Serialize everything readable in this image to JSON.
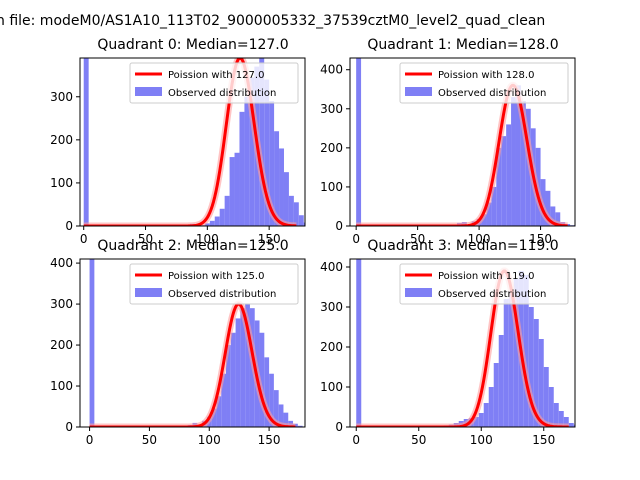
{
  "figure": {
    "suptitle": "n file: modeM0/AS1A10_113T02_9000005332_37539cztM0_level2_quad_clean"
  },
  "colors": {
    "hist": "#7f7ff5",
    "poisson": "#ff0000",
    "peak_fill": "#ff9d9d"
  },
  "chart_data": [
    {
      "type": "bar",
      "title": "Quadrant 0: Median=127.0",
      "median": 127.0,
      "xlim": [
        -3,
        179
      ],
      "ylim": [
        0,
        390
      ],
      "xticks": [
        0,
        50,
        100,
        150
      ],
      "yticks": [
        0,
        100,
        200,
        300
      ],
      "legend": [
        "Poission with 127.0",
        "Observed distribution"
      ],
      "legend_position": "top-right",
      "zero_bin_value": 390,
      "hist": {
        "bin_start": 70,
        "bin_width": 4,
        "values": [
          1,
          2,
          1,
          3,
          5,
          4,
          2,
          6,
          12,
          22,
          40,
          70,
          160,
          170,
          265,
          300,
          345,
          370,
          390,
          340,
          290,
          220,
          180,
          125,
          70,
          55,
          25,
          8,
          5,
          2,
          1
        ]
      },
      "poisson": {
        "lambda": 127.0,
        "x_range": [
          0,
          172
        ]
      }
    },
    {
      "type": "bar",
      "title": "Quadrant 1: Median=128.0",
      "median": 128.0,
      "xlim": [
        -5,
        178
      ],
      "ylim": [
        0,
        430
      ],
      "xticks": [
        0,
        50,
        100,
        150
      ],
      "yticks": [
        0,
        100,
        200,
        300,
        400
      ],
      "legend": [
        "Poission with 128.0",
        "Observed distribution"
      ],
      "legend_position": "top-right",
      "zero_bin_value": 430,
      "hist": {
        "bin_start": 74,
        "bin_width": 4,
        "values": [
          2,
          3,
          8,
          10,
          4,
          12,
          18,
          30,
          60,
          100,
          200,
          230,
          260,
          330,
          360,
          320,
          300,
          250,
          200,
          120,
          90,
          50,
          35,
          10,
          5,
          2,
          1
        ]
      },
      "poisson": {
        "lambda": 128.0,
        "x_range": [
          0,
          172
        ]
      }
    },
    {
      "type": "bar",
      "title": "Quadrant 2: Median=125.0",
      "median": 125.0,
      "xlim": [
        -8,
        180
      ],
      "ylim": [
        0,
        410
      ],
      "xticks": [
        0,
        50,
        100,
        150
      ],
      "yticks": [
        0,
        100,
        200,
        300,
        400
      ],
      "legend": [
        "Poission with 125.0",
        "Observed distribution"
      ],
      "legend_position": "top-right",
      "zero_bin_value": 410,
      "hist": {
        "bin_start": 74,
        "bin_width": 4,
        "values": [
          2,
          3,
          5,
          10,
          4,
          15,
          25,
          45,
          75,
          130,
          200,
          230,
          265,
          290,
          300,
          290,
          260,
          230,
          170,
          130,
          90,
          55,
          35,
          15,
          8,
          3,
          1
        ]
      },
      "poisson": {
        "lambda": 125.0,
        "x_range": [
          0,
          172
        ]
      }
    },
    {
      "type": "bar",
      "title": "Quadrant 3: Median=119.0",
      "median": 119.0,
      "xlim": [
        -5,
        175
      ],
      "ylim": [
        0,
        420
      ],
      "xticks": [
        0,
        50,
        100,
        150
      ],
      "yticks": [
        0,
        100,
        200,
        300,
        400
      ],
      "legend": [
        "Poission with 119.0",
        "Observed distribution"
      ],
      "legend_position": "top-right",
      "zero_bin_value": 420,
      "hist": {
        "bin_start": 66,
        "bin_width": 4,
        "values": [
          2,
          4,
          6,
          10,
          15,
          20,
          22,
          25,
          35,
          60,
          100,
          160,
          230,
          320,
          340,
          370,
          390,
          380,
          300,
          270,
          220,
          150,
          100,
          60,
          40,
          25,
          10,
          6,
          3,
          2,
          1
        ]
      },
      "poisson": {
        "lambda": 119.0,
        "x_range": [
          0,
          170
        ]
      }
    }
  ]
}
